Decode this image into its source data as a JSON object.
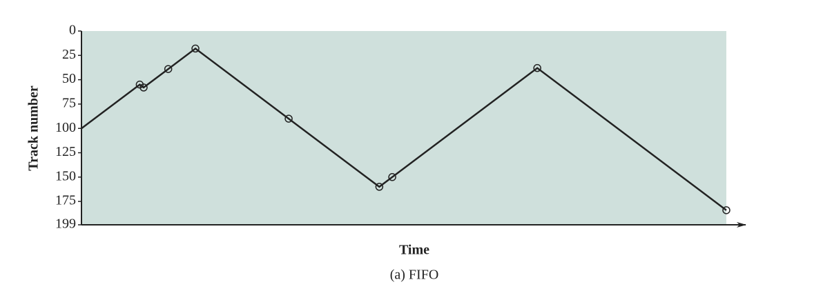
{
  "chart_data": {
    "type": "line",
    "caption": "(a) FIFO",
    "xlabel": "Time",
    "ylabel": "Track number",
    "x": [
      0,
      45,
      48,
      67,
      88,
      160,
      230,
      240,
      352,
      498
    ],
    "values": [
      100,
      55,
      58,
      39,
      18,
      90,
      160,
      150,
      38,
      184
    ],
    "color": "#222222",
    "background": "#cfe0dc",
    "xlim": [
      0,
      498
    ],
    "ylim": [
      199,
      0
    ],
    "yticks": [
      0,
      25,
      50,
      75,
      100,
      125,
      150,
      175,
      199
    ],
    "grid": false
  }
}
